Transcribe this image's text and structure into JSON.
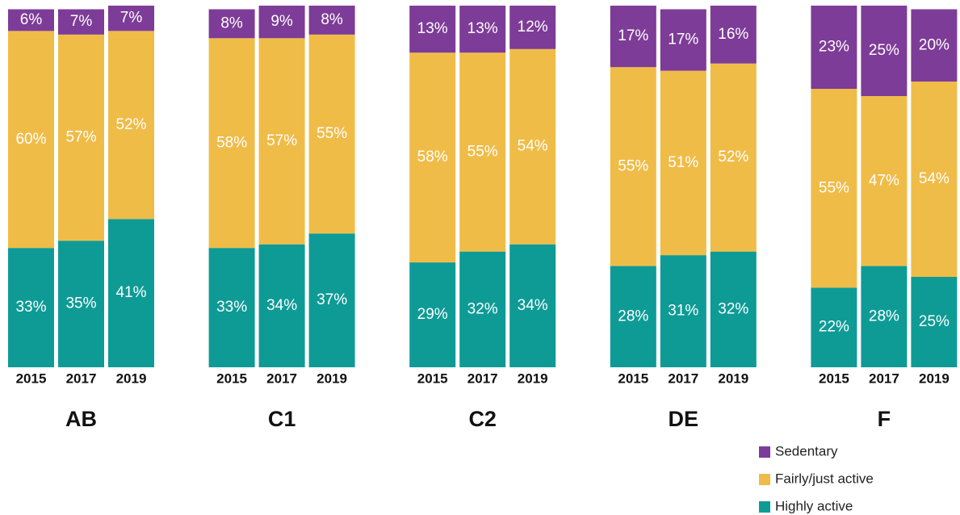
{
  "chart_data": {
    "type": "stacked_bar",
    "groups": [
      "AB",
      "C1",
      "C2",
      "DE",
      "F"
    ],
    "categories": [
      "2015",
      "2017",
      "2019",
      "2015",
      "2017",
      "2019",
      "2015",
      "2017",
      "2019",
      "2015",
      "2017",
      "2019",
      "2015",
      "2017",
      "2019"
    ],
    "ylim": [
      0,
      100
    ],
    "series": [
      {
        "name": "Sedentary",
        "color": "#7d3c98",
        "values": [
          6,
          7,
          7,
          8,
          9,
          8,
          13,
          13,
          12,
          17,
          17,
          16,
          23,
          25,
          20
        ],
        "value_labels": [
          "6%",
          "7%",
          "7%",
          "8%",
          "9%",
          "8%",
          "13%",
          "13%",
          "12%",
          "17%",
          "17%",
          "16%",
          "23%",
          "25%",
          "20%"
        ]
      },
      {
        "name": "Fairly/just active",
        "color": "#f0bc48",
        "values": [
          60,
          57,
          52,
          58,
          57,
          55,
          58,
          55,
          54,
          55,
          51,
          52,
          55,
          47,
          54
        ],
        "value_labels": [
          "60%",
          "57%",
          "52%",
          "58%",
          "57%",
          "55%",
          "58%",
          "55%",
          "54%",
          "55%",
          "51%",
          "52%",
          "55%",
          "47%",
          "54%"
        ]
      },
      {
        "name": "Highly active",
        "color": "#0e9b96",
        "values": [
          33,
          35,
          41,
          33,
          34,
          37,
          29,
          32,
          34,
          28,
          31,
          32,
          22,
          28,
          25
        ],
        "value_labels": [
          "33%",
          "35%",
          "41%",
          "33%",
          "34%",
          "37%",
          "29%",
          "32%",
          "34%",
          "28%",
          "31%",
          "32%",
          "22%",
          "28%",
          "25%"
        ]
      }
    ]
  }
}
